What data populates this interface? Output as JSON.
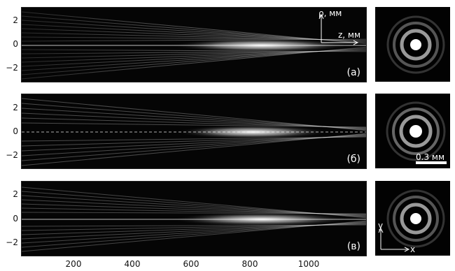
{
  "panels": [
    {
      "label": "(a)"
    },
    {
      "label": "(б)"
    },
    {
      "label": "(в)"
    }
  ],
  "y_ticks": [
    "2",
    "0",
    "−2"
  ],
  "x_ticks": [
    "200",
    "400",
    "600",
    "800",
    "1000"
  ],
  "axis_labels": {
    "rho": "ρ, мм",
    "z": "z, мм",
    "x": "x",
    "y": "y"
  },
  "scale_bar": "0.3 мм",
  "colors": {
    "background": "#050505",
    "beam": "#ffffff",
    "ring": "#9a9a9a"
  }
}
